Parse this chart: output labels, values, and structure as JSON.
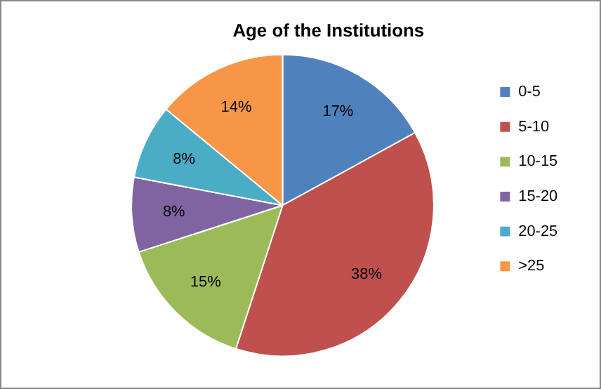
{
  "chart_data": {
    "type": "pie",
    "title": "Age of the Institutions",
    "categories": [
      "0-5",
      "5-10",
      "10-15",
      "15-20",
      "20-25",
      ">25"
    ],
    "values": [
      17,
      38,
      15,
      8,
      8,
      14
    ],
    "colors": [
      "#4f81bd",
      "#c0504d",
      "#9bbb59",
      "#8064a2",
      "#4bacc6",
      "#f79646"
    ],
    "value_labels": [
      "17%",
      "38%",
      "15%",
      "8%",
      "8%",
      "14%"
    ],
    "legend": "right"
  }
}
